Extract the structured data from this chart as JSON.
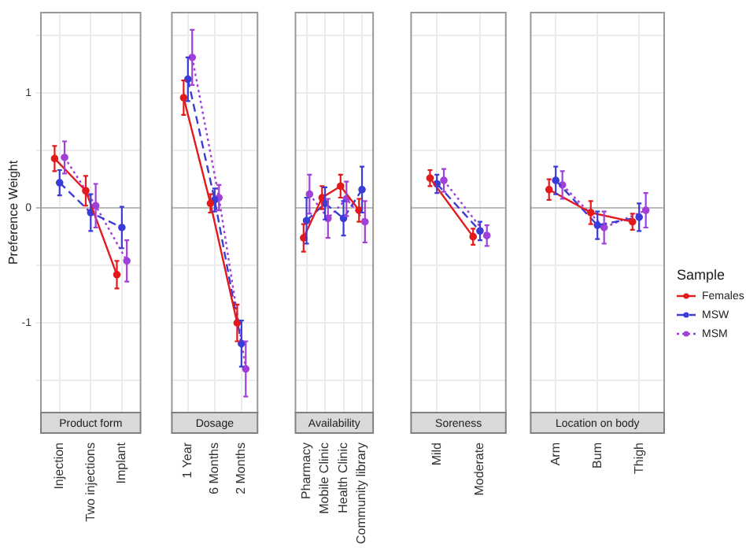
{
  "chart_data": [
    {
      "type": "line",
      "title": "Product form",
      "ylabel": "Preference Weight",
      "categories": [
        "Injection",
        "Two injections",
        "Implant"
      ],
      "marker": "circle",
      "grid": true,
      "ylim": [
        -1.78,
        1.7
      ],
      "yticks": [
        {
          "value": -1.5,
          "label": null
        },
        -1,
        {
          "value": -0.5,
          "label": null
        },
        0,
        {
          "value": 0.5,
          "label": null
        },
        1,
        {
          "value": 1.5,
          "label": null
        }
      ],
      "series": [
        {
          "color": "#e31a1c",
          "line_style": "solid",
          "values": [
            0.43,
            0.15,
            -0.58
          ],
          "errors": [
            0.11,
            0.13,
            0.12
          ]
        },
        {
          "color": "#3b3bd6",
          "line_style": "dashed",
          "values": [
            0.22,
            -0.04,
            -0.17
          ],
          "errors": [
            0.11,
            0.16,
            0.18
          ]
        },
        {
          "color": "#a040d8",
          "line_style": "dotted",
          "values": [
            0.44,
            0.02,
            -0.46
          ],
          "errors": [
            0.14,
            0.19,
            0.18
          ]
        }
      ]
    },
    {
      "type": "line",
      "title": "Dosage",
      "categories": [
        "1 Year",
        "6 Months",
        "2 Months"
      ],
      "marker": "circle",
      "grid": true,
      "tick_labels": "x",
      "ylim": [
        -1.78,
        1.7
      ],
      "yticks": [
        {
          "value": -1.5,
          "label": null
        },
        -1,
        {
          "value": -0.5,
          "label": null
        },
        0,
        {
          "value": 0.5,
          "label": null
        },
        1,
        {
          "value": 1.5,
          "label": null
        }
      ],
      "series": [
        {
          "color": "#e31a1c",
          "line_style": "solid",
          "values": [
            0.96,
            0.04,
            -1.0
          ],
          "errors": [
            0.15,
            0.08,
            0.16
          ]
        },
        {
          "color": "#3b3bd6",
          "line_style": "dashed",
          "values": [
            1.12,
            0.07,
            -1.18
          ],
          "errors": [
            0.19,
            0.1,
            0.2
          ]
        },
        {
          "color": "#a040d8",
          "line_style": "dotted",
          "values": [
            1.31,
            0.09,
            -1.4
          ],
          "errors": [
            0.24,
            0.11,
            0.24
          ]
        }
      ]
    },
    {
      "type": "line",
      "title": "Availability",
      "categories": [
        "Pharmacy",
        "Mobile Clinic",
        "Health Clinic",
        "Community library"
      ],
      "marker": "circle",
      "grid": true,
      "tick_labels": "x",
      "ylim": [
        -1.78,
        1.7
      ],
      "yticks": [
        {
          "value": -1.5,
          "label": null
        },
        -1,
        {
          "value": -0.5,
          "label": null
        },
        0,
        {
          "value": 0.5,
          "label": null
        },
        1,
        {
          "value": 1.5,
          "label": null
        }
      ],
      "series": [
        {
          "color": "#e31a1c",
          "line_style": "solid",
          "values": [
            -0.26,
            0.09,
            0.19,
            -0.02
          ],
          "errors": [
            0.12,
            0.1,
            0.1,
            0.1
          ]
        },
        {
          "color": "#3b3bd6",
          "line_style": "dashed",
          "values": [
            -0.11,
            0.04,
            -0.09,
            0.16
          ],
          "errors": [
            0.2,
            0.14,
            0.15,
            0.2
          ]
        },
        {
          "color": "#a040d8",
          "line_style": "dotted",
          "values": [
            0.12,
            -0.09,
            0.08,
            -0.12
          ],
          "errors": [
            0.17,
            0.17,
            0.15,
            0.18
          ]
        }
      ]
    },
    {
      "type": "line",
      "title": "Soreness",
      "categories": [
        "Mild",
        "Moderate"
      ],
      "marker": "circle",
      "grid": true,
      "tick_labels": "x",
      "ylim": [
        -1.78,
        1.7
      ],
      "yticks": [
        {
          "value": -1.5,
          "label": null
        },
        -1,
        {
          "value": -0.5,
          "label": null
        },
        0,
        {
          "value": 0.5,
          "label": null
        },
        1,
        {
          "value": 1.5,
          "label": null
        }
      ],
      "series": [
        {
          "color": "#e31a1c",
          "line_style": "solid",
          "values": [
            0.26,
            -0.25
          ],
          "errors": [
            0.07,
            0.07
          ]
        },
        {
          "color": "#3b3bd6",
          "line_style": "dashed",
          "values": [
            0.21,
            -0.2
          ],
          "errors": [
            0.08,
            0.08
          ]
        },
        {
          "color": "#a040d8",
          "line_style": "dotted",
          "values": [
            0.24,
            -0.24
          ],
          "errors": [
            0.1,
            0.09
          ]
        }
      ]
    },
    {
      "type": "line",
      "title": "Location on body",
      "categories": [
        "Arm",
        "Bum",
        "Thigh"
      ],
      "marker": "circle",
      "grid": true,
      "tick_labels": "x",
      "legend": "right",
      "legend_title": "Sample",
      "ylim": [
        -1.78,
        1.7
      ],
      "yticks": [
        {
          "value": -1.5,
          "label": null
        },
        -1,
        {
          "value": -0.5,
          "label": null
        },
        0,
        {
          "value": 0.5,
          "label": null
        },
        1,
        {
          "value": 1.5,
          "label": null
        }
      ],
      "series": [
        {
          "name": "Females",
          "color": "#e31a1c",
          "line_style": "solid",
          "values": [
            0.16,
            -0.04,
            -0.12
          ],
          "errors": [
            0.09,
            0.1,
            0.07
          ]
        },
        {
          "name": "MSW",
          "color": "#3b3bd6",
          "line_style": "dashed",
          "values": [
            0.24,
            -0.15,
            -0.08
          ],
          "errors": [
            0.12,
            0.12,
            0.12
          ]
        },
        {
          "name": "MSM",
          "color": "#a040d8",
          "line_style": "dotted",
          "values": [
            0.2,
            -0.17,
            -0.02
          ],
          "errors": [
            0.12,
            0.14,
            0.15
          ]
        }
      ]
    }
  ]
}
